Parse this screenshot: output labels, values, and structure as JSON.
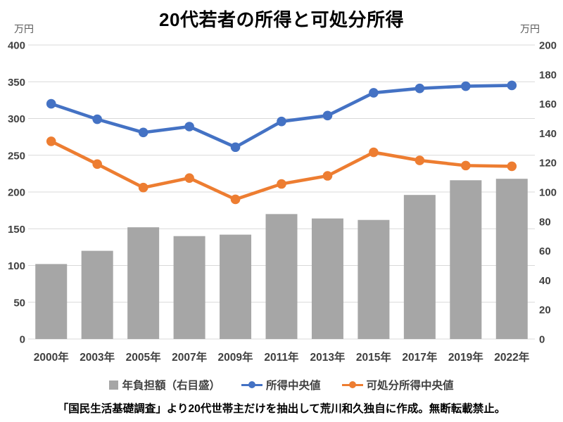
{
  "title": "20代若者の所得と可処分所得",
  "axes": {
    "left_unit": "万円",
    "right_unit": "万円"
  },
  "footer": "「国民生活基礎調査」より20代世帯主だけを抽出して荒川和久独自に作成。無断転載禁止。",
  "colors": {
    "bar": "#A6A6A6",
    "income_line": "#4472C4",
    "disposable_line": "#ED7D31",
    "grid": "#D9D9D9",
    "axis_text": "#404040",
    "unit_text": "#595959",
    "title_text": "#000000",
    "background": "#FFFFFF"
  },
  "chart_data": {
    "type": "bar+line dual-axis combo",
    "title": "20代若者の所得と可処分所得",
    "categories": [
      "2000年",
      "2003年",
      "2005年",
      "2007年",
      "2009年",
      "2011年",
      "2013年",
      "2015年",
      "2017年",
      "2019年",
      "2022年"
    ],
    "series": [
      {
        "name": "年負担額（右目盛）",
        "type": "bar",
        "axis": "right",
        "color": "#A6A6A6",
        "values": [
          51,
          60,
          76,
          70,
          71,
          85,
          82,
          81,
          98,
          108,
          109
        ]
      },
      {
        "name": "所得中央値",
        "type": "line",
        "axis": "left",
        "color": "#4472C4",
        "values": [
          320,
          299,
          281,
          289,
          261,
          296,
          304,
          335,
          341,
          344,
          345
        ]
      },
      {
        "name": "可処分所得中央値",
        "type": "line",
        "axis": "left",
        "color": "#ED7D31",
        "values": [
          269,
          238,
          206,
          219,
          190,
          211,
          222,
          254,
          243,
          236,
          235
        ]
      }
    ],
    "left_axis": {
      "unit": "万円",
      "min": 0,
      "max": 400,
      "tick_step": 50,
      "ticks": [
        400,
        350,
        300,
        250,
        200,
        150,
        100,
        50,
        0
      ]
    },
    "right_axis": {
      "unit": "万円",
      "min": 0,
      "max": 200,
      "tick_step": 20,
      "ticks": [
        200,
        180,
        160,
        140,
        120,
        100,
        80,
        60,
        40,
        20,
        0
      ]
    },
    "grid": "horizontal gridlines at left-axis ticks",
    "legend_position": "bottom"
  }
}
